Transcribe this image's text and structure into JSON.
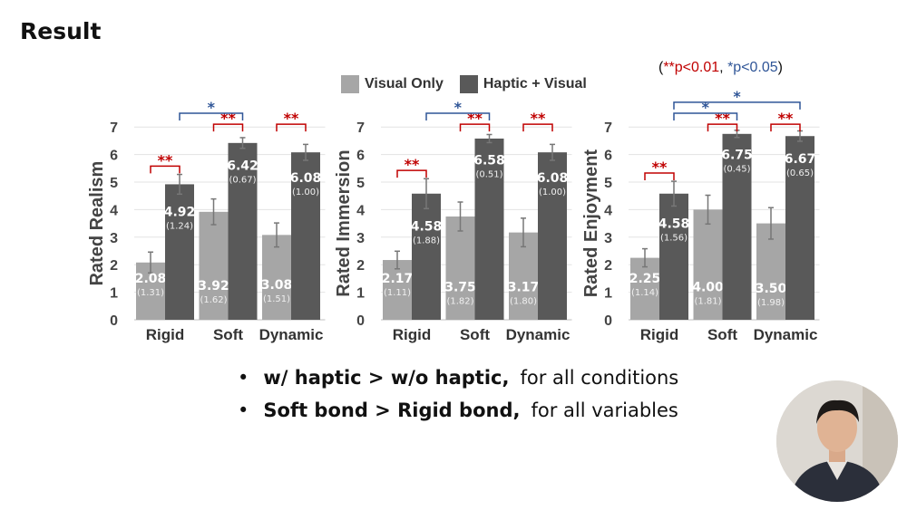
{
  "slide_title": "Result",
  "legend": [
    {
      "label": "Visual Only",
      "color": "#a6a6a6"
    },
    {
      "label": "Haptic + Visual",
      "color": "#595959"
    }
  ],
  "pvalue_note": {
    "open": "(",
    "double": "**p<0.01",
    "sep": ", ",
    "single": "*p<0.05",
    "close": ")",
    "double_color": "#c00000",
    "single_color": "#2f5597"
  },
  "bullets": [
    {
      "bold": "w/ haptic > w/o haptic,",
      "text": "for all conditions"
    },
    {
      "bold": "Soft bond > Rigid bond,",
      "text": "for all variables"
    }
  ],
  "chart_data": [
    {
      "type": "bar",
      "ylabel": "Rated Realism",
      "categories": [
        "Rigid",
        "Soft",
        "Dynamic"
      ],
      "ylim": [
        0,
        7
      ],
      "yticks": [
        0,
        1,
        2,
        3,
        4,
        5,
        6,
        7
      ],
      "grid": true,
      "series": [
        {
          "name": "Visual Only",
          "values": [
            2.08,
            3.92,
            3.08
          ],
          "sd": [
            1.31,
            1.62,
            1.51
          ],
          "labels": [
            "2.08",
            "3.92",
            "3.08"
          ],
          "sd_labels": [
            "(1.31)",
            "(1.62)",
            "(1.51)"
          ]
        },
        {
          "name": "Haptic + Visual",
          "values": [
            4.92,
            6.42,
            6.08
          ],
          "sd": [
            1.24,
            0.67,
            1.0
          ],
          "labels": [
            "4.92",
            "6.42",
            "6.08"
          ],
          "sd_labels": [
            "(1.24)",
            "(0.67)",
            "(1.00)"
          ]
        }
      ],
      "significance": [
        {
          "from": [
            0,
            0
          ],
          "to": [
            0,
            1
          ],
          "label": "**"
        },
        {
          "from": [
            1,
            0
          ],
          "to": [
            1,
            1
          ],
          "label": "**"
        },
        {
          "from": [
            2,
            0
          ],
          "to": [
            2,
            1
          ],
          "label": "**"
        },
        {
          "from": [
            0,
            1
          ],
          "to": [
            1,
            1
          ],
          "label": "*"
        }
      ]
    },
    {
      "type": "bar",
      "ylabel": "Rated Immersion",
      "categories": [
        "Rigid",
        "Soft",
        "Dynamic"
      ],
      "ylim": [
        0,
        7
      ],
      "yticks": [
        0,
        1,
        2,
        3,
        4,
        5,
        6,
        7
      ],
      "grid": true,
      "series": [
        {
          "name": "Visual Only",
          "values": [
            2.17,
            3.75,
            3.17
          ],
          "sd": [
            1.11,
            1.82,
            1.8
          ],
          "labels": [
            "2.17",
            "3.75",
            "3.17"
          ],
          "sd_labels": [
            "(1.11)",
            "(1.82)",
            "(1.80)"
          ]
        },
        {
          "name": "Haptic + Visual",
          "values": [
            4.58,
            6.58,
            6.08
          ],
          "sd": [
            1.88,
            0.51,
            1.0
          ],
          "labels": [
            "4.58",
            "6.58",
            "6.08"
          ],
          "sd_labels": [
            "(1.88)",
            "(0.51)",
            "(1.00)"
          ]
        }
      ],
      "significance": [
        {
          "from": [
            0,
            0
          ],
          "to": [
            0,
            1
          ],
          "label": "**"
        },
        {
          "from": [
            1,
            0
          ],
          "to": [
            1,
            1
          ],
          "label": "**"
        },
        {
          "from": [
            2,
            0
          ],
          "to": [
            2,
            1
          ],
          "label": "**"
        },
        {
          "from": [
            0,
            1
          ],
          "to": [
            1,
            1
          ],
          "label": "*"
        }
      ]
    },
    {
      "type": "bar",
      "ylabel": "Rated Enjoyment",
      "categories": [
        "Rigid",
        "Soft",
        "Dynamic"
      ],
      "ylim": [
        0,
        7
      ],
      "yticks": [
        0,
        1,
        2,
        3,
        4,
        5,
        6,
        7
      ],
      "grid": true,
      "series": [
        {
          "name": "Visual Only",
          "values": [
            2.25,
            4.0,
            3.5
          ],
          "sd": [
            1.14,
            1.81,
            1.98
          ],
          "labels": [
            "2.25",
            "4.00",
            "3.50"
          ],
          "sd_labels": [
            "(1.14)",
            "(1.81)",
            "(1.98)"
          ]
        },
        {
          "name": "Haptic + Visual",
          "values": [
            4.58,
            6.75,
            6.67
          ],
          "sd": [
            1.56,
            0.45,
            0.65
          ],
          "labels": [
            "4.58",
            "6.75",
            "6.67"
          ],
          "sd_labels": [
            "(1.56)",
            "(0.45)",
            "(0.65)"
          ]
        }
      ],
      "significance": [
        {
          "from": [
            0,
            0
          ],
          "to": [
            0,
            1
          ],
          "label": "**"
        },
        {
          "from": [
            1,
            0
          ],
          "to": [
            1,
            1
          ],
          "label": "**"
        },
        {
          "from": [
            2,
            0
          ],
          "to": [
            2,
            1
          ],
          "label": "**"
        },
        {
          "from": [
            0,
            1
          ],
          "to": [
            1,
            1
          ],
          "label": "*"
        },
        {
          "from": [
            0,
            1
          ],
          "to": [
            2,
            1
          ],
          "label": "*"
        }
      ]
    }
  ]
}
